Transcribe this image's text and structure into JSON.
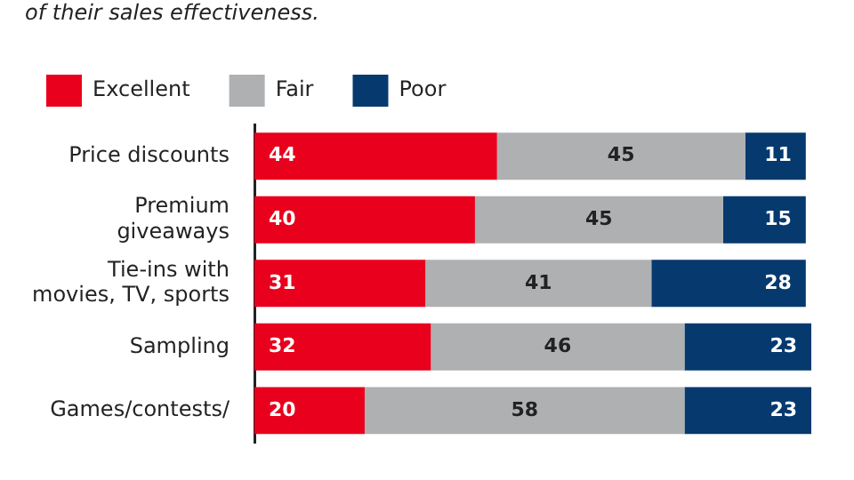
{
  "chart_data": {
    "type": "bar",
    "orientation": "horizontal",
    "stacked": true,
    "subtitle": "of their sales effectiveness.",
    "categories": [
      "Price discounts",
      "Premium\ngiveaways",
      "Tie-ins with\nmovies, TV, sports",
      "Sampling",
      "Games/contests/"
    ],
    "series": [
      {
        "name": "Excellent",
        "color": "#e8001c",
        "values": [
          44,
          40,
          31,
          32,
          20
        ]
      },
      {
        "name": "Fair",
        "color": "#aeb0b2",
        "values": [
          45,
          45,
          41,
          46,
          58
        ]
      },
      {
        "name": "Poor",
        "color": "#063a6e",
        "values": [
          11,
          15,
          28,
          23,
          23
        ]
      }
    ],
    "data_labels": true,
    "legend": "top left",
    "grid": false
  }
}
